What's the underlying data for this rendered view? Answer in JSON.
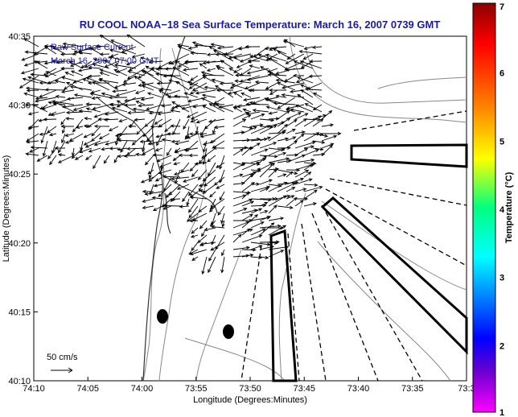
{
  "title": "RU COOL  NOAA−18  Sea Surface Temperature:  March 16, 2007 0739 GMT",
  "legend": {
    "line1": "Raw Surface Current",
    "line2": "March 16, 2007 07:00 GMT",
    "scale_label": "50 cm/s"
  },
  "axes": {
    "xlabel": "Longitude (Degrees:Minutes)",
    "ylabel": "Latitude (Degrees:Minutes)",
    "xticks": [
      "74:10",
      "74:05",
      "74:00",
      "73:55",
      "73:50",
      "73:45",
      "73:40",
      "73:35",
      "73:3"
    ],
    "yticks": [
      "40:35",
      "40:30",
      "40:25",
      "40:20",
      "40:15",
      "40:10"
    ]
  },
  "colorbar": {
    "label": "Temperature (°C)",
    "ticks": [
      "7",
      "6",
      "5",
      "4",
      "3",
      "2",
      "1"
    ],
    "range": [
      1,
      7
    ],
    "colors": [
      "#8b0000",
      "#ff0000",
      "#ff8000",
      "#ffff00",
      "#00ff80",
      "#00ffff",
      "#0080ff",
      "#0000ff",
      "#6a00d0",
      "#ff00ff"
    ]
  },
  "map_features": {
    "grid": false,
    "coastline": "New Jersey / New York Harbor",
    "shipping_lanes": "dashed lines radiating from harbor entrance",
    "vector_field": "surface current arrows"
  }
}
